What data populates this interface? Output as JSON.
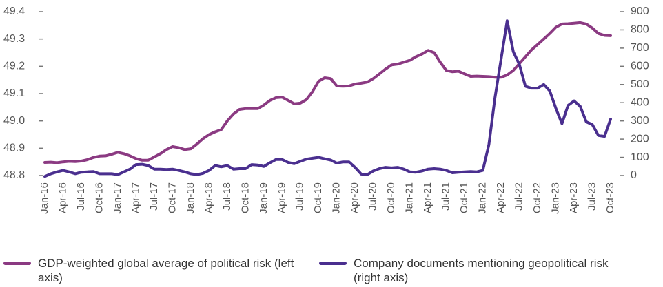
{
  "chart_data": {
    "type": "line",
    "categories": [
      "Jan-16",
      null,
      null,
      "Apr-16",
      null,
      null,
      "Jul-16",
      null,
      null,
      "Oct-16",
      null,
      null,
      "Jan-17",
      null,
      null,
      "Apr-17",
      null,
      null,
      "Jul-17",
      null,
      null,
      "Oct-17",
      null,
      null,
      "Jan-18",
      null,
      null,
      "Apr-18",
      null,
      null,
      "Jul-18",
      null,
      null,
      "Oct-18",
      null,
      null,
      "Jan-19",
      null,
      null,
      "Apr-19",
      null,
      null,
      "Jul-19",
      null,
      null,
      "Oct-19",
      null,
      null,
      "Jan-20",
      null,
      null,
      "Apr-20",
      null,
      null,
      "Jul-20",
      null,
      null,
      "Oct-20",
      null,
      null,
      "Jan-21",
      null,
      null,
      "Apr-21",
      null,
      null,
      "Jul-21",
      null,
      null,
      "Oct-21",
      null,
      null,
      "Jan-22",
      null,
      null,
      "Apr-22",
      null,
      null,
      "Jul-22",
      null,
      null,
      "Oct-22",
      null,
      null,
      "Jan-23",
      null,
      null,
      "Apr-23",
      null,
      null,
      "Jul-23",
      null,
      null,
      "Oct-23"
    ],
    "series": [
      {
        "name": "GDP-weighted global average of political risk (left axis)",
        "color": "#8b3a82",
        "values": [
          48.848,
          48.849,
          48.847,
          48.85,
          48.852,
          48.851,
          48.853,
          48.858,
          48.866,
          48.871,
          48.872,
          48.878,
          48.885,
          48.88,
          48.872,
          48.862,
          48.856,
          48.856,
          48.868,
          48.88,
          48.895,
          48.906,
          48.902,
          48.895,
          48.898,
          48.915,
          48.935,
          48.95,
          48.96,
          48.968,
          49.0,
          49.025,
          49.042,
          49.045,
          49.045,
          49.045,
          49.058,
          49.075,
          49.085,
          49.087,
          49.075,
          49.063,
          49.065,
          49.078,
          49.107,
          49.145,
          49.158,
          49.155,
          49.128,
          49.127,
          49.128,
          49.135,
          49.138,
          49.142,
          49.155,
          49.172,
          49.19,
          49.205,
          49.208,
          49.215,
          49.222,
          49.235,
          49.245,
          49.258,
          49.25,
          49.215,
          49.185,
          49.18,
          49.182,
          49.172,
          49.163,
          49.164,
          49.163,
          49.162,
          49.16,
          49.16,
          49.168,
          49.185,
          49.21,
          49.235,
          49.26,
          49.28,
          49.3,
          49.32,
          49.343,
          49.355,
          49.356,
          49.358,
          49.36,
          49.355,
          49.34,
          49.32,
          49.313,
          49.312
        ]
      },
      {
        "name": "Company documents mentioning geopolitical risk (right axis)",
        "color": "#4a2f8f",
        "axis": "y2",
        "values": [
          -5,
          10,
          20,
          28,
          20,
          10,
          18,
          20,
          22,
          10,
          10,
          10,
          5,
          20,
          35,
          60,
          62,
          55,
          35,
          35,
          33,
          35,
          28,
          20,
          10,
          5,
          12,
          28,
          55,
          48,
          55,
          35,
          38,
          38,
          60,
          58,
          50,
          70,
          88,
          88,
          72,
          65,
          78,
          90,
          95,
          100,
          92,
          85,
          68,
          75,
          75,
          45,
          8,
          5,
          25,
          38,
          45,
          42,
          45,
          35,
          20,
          18,
          25,
          35,
          38,
          35,
          28,
          15,
          18,
          20,
          22,
          20,
          28,
          170,
          430,
          640,
          850,
          680,
          610,
          490,
          480,
          480,
          500,
          465,
          370,
          285,
          385,
          410,
          380,
          295,
          280,
          220,
          215,
          310
        ]
      }
    ],
    "ylim": [
      48.8,
      49.4
    ],
    "yticks": [
      48.8,
      48.9,
      {
        "value": 49,
        "label": "49.0"
      },
      49.1,
      49.2,
      49.3,
      49.4
    ],
    "y2lim": [
      0,
      900
    ],
    "y2ticks": [
      0,
      100,
      200,
      300,
      400,
      500,
      600,
      700,
      800,
      900
    ],
    "grid": false,
    "legend": "bottom"
  }
}
